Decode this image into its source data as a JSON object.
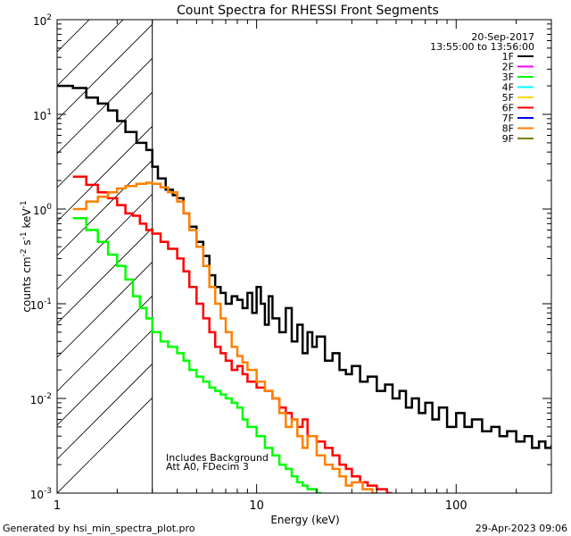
{
  "chart_data": {
    "type": "line",
    "title": "Count Spectra for RHESSI Front Segments",
    "xlabel": "Energy (keV)",
    "ylabel": "counts cm",
    "ylabel_parts": [
      "counts cm",
      "-2",
      " s",
      "-1",
      " keV",
      "-1"
    ],
    "x_scale": "log",
    "y_scale": "log",
    "xlim": [
      1,
      300
    ],
    "ylim": [
      0.001,
      100
    ],
    "x_ticks": [
      {
        "value": 1,
        "label": "1"
      },
      {
        "value": 10,
        "label": "10"
      },
      {
        "value": 100,
        "label": "100"
      }
    ],
    "y_ticks": [
      {
        "value": 0.001,
        "base": "10",
        "exp": "-3"
      },
      {
        "value": 0.01,
        "base": "10",
        "exp": "-2"
      },
      {
        "value": 0.1,
        "base": "10",
        "exp": "-1"
      },
      {
        "value": 1,
        "base": "10",
        "exp": "0"
      },
      {
        "value": 10,
        "base": "10",
        "exp": "1"
      },
      {
        "value": 100,
        "base": "10",
        "exp": "2"
      }
    ],
    "hatched_region": {
      "x_min": 1,
      "x_max": 3
    },
    "date": "20-Sep-2017",
    "time_range": "13:55:00 to 13:56:00",
    "annotations": [
      "Includes Background",
      "Att A0, FDecim 3"
    ],
    "footer_left": "Generated by hsi_min_spectra_plot.pro",
    "footer_right": "29-Apr-2023 09:06",
    "legend": [
      {
        "name": "1F",
        "color": "#000000"
      },
      {
        "name": "2F",
        "color": "#ff00ff"
      },
      {
        "name": "3F",
        "color": "#00ff00"
      },
      {
        "name": "4F",
        "color": "#00ffff"
      },
      {
        "name": "5F",
        "color": "#ffd700"
      },
      {
        "name": "6F",
        "color": "#ff0000"
      },
      {
        "name": "7F",
        "color": "#0000ff"
      },
      {
        "name": "8F",
        "color": "#ff8000"
      },
      {
        "name": "9F",
        "color": "#808000"
      }
    ],
    "series": [
      {
        "name": "1F",
        "color": "#000000",
        "points": [
          [
            1.0,
            20
          ],
          [
            1.2,
            19
          ],
          [
            1.4,
            15
          ],
          [
            1.6,
            13
          ],
          [
            1.8,
            11
          ],
          [
            2.0,
            8.5
          ],
          [
            2.2,
            6.5
          ],
          [
            2.5,
            5
          ],
          [
            2.8,
            4.2
          ],
          [
            3.0,
            2.8
          ],
          [
            3.2,
            2.1
          ],
          [
            3.5,
            1.6
          ],
          [
            3.8,
            1.4
          ],
          [
            4.0,
            1.3
          ],
          [
            4.3,
            0.9
          ],
          [
            4.6,
            0.65
          ],
          [
            5.0,
            0.45
          ],
          [
            5.4,
            0.32
          ],
          [
            5.8,
            0.2
          ],
          [
            6.2,
            0.15
          ],
          [
            6.6,
            0.13
          ],
          [
            7.0,
            0.1
          ],
          [
            7.5,
            0.12
          ],
          [
            8.0,
            0.11
          ],
          [
            8.5,
            0.09
          ],
          [
            9.0,
            0.13
          ],
          [
            9.5,
            0.08
          ],
          [
            10.0,
            0.15
          ],
          [
            10.5,
            0.1
          ],
          [
            11.0,
            0.06
          ],
          [
            11.5,
            0.12
          ],
          [
            12.0,
            0.07
          ],
          [
            13.0,
            0.05
          ],
          [
            14.0,
            0.09
          ],
          [
            15.0,
            0.04
          ],
          [
            16.0,
            0.06
          ],
          [
            17.0,
            0.03
          ],
          [
            18.0,
            0.05
          ],
          [
            19.0,
            0.035
          ],
          [
            20.0,
            0.045
          ],
          [
            22.0,
            0.025
          ],
          [
            24.0,
            0.03
          ],
          [
            26.0,
            0.02
          ],
          [
            28.0,
            0.018
          ],
          [
            30.0,
            0.022
          ],
          [
            33.0,
            0.015
          ],
          [
            36.0,
            0.017
          ],
          [
            40.0,
            0.012
          ],
          [
            44.0,
            0.014
          ],
          [
            48.0,
            0.01
          ],
          [
            52.0,
            0.012
          ],
          [
            56.0,
            0.008
          ],
          [
            60.0,
            0.01
          ],
          [
            65.0,
            0.007
          ],
          [
            70.0,
            0.009
          ],
          [
            76.0,
            0.006
          ],
          [
            82.0,
            0.008
          ],
          [
            90.0,
            0.005
          ],
          [
            100.0,
            0.007
          ],
          [
            110.0,
            0.005
          ],
          [
            120.0,
            0.006
          ],
          [
            135.0,
            0.0045
          ],
          [
            150.0,
            0.005
          ],
          [
            165.0,
            0.004
          ],
          [
            180.0,
            0.0045
          ],
          [
            200.0,
            0.0035
          ],
          [
            220.0,
            0.004
          ],
          [
            240.0,
            0.003
          ],
          [
            260.0,
            0.0035
          ],
          [
            280.0,
            0.003
          ],
          [
            300.0,
            0.0032
          ]
        ]
      },
      {
        "name": "6F",
        "color": "#ff0000",
        "points": [
          [
            1.2,
            2.2
          ],
          [
            1.4,
            1.8
          ],
          [
            1.6,
            1.5
          ],
          [
            1.8,
            1.3
          ],
          [
            2.0,
            1.1
          ],
          [
            2.2,
            0.9
          ],
          [
            2.4,
            0.85
          ],
          [
            2.6,
            0.7
          ],
          [
            2.8,
            0.6
          ],
          [
            3.0,
            0.55
          ],
          [
            3.3,
            0.45
          ],
          [
            3.6,
            0.38
          ],
          [
            4.0,
            0.3
          ],
          [
            4.3,
            0.22
          ],
          [
            4.6,
            0.15
          ],
          [
            5.0,
            0.1
          ],
          [
            5.4,
            0.07
          ],
          [
            5.8,
            0.05
          ],
          [
            6.2,
            0.035
          ],
          [
            6.6,
            0.03
          ],
          [
            7.0,
            0.025
          ],
          [
            7.5,
            0.02
          ],
          [
            8.0,
            0.022
          ],
          [
            8.5,
            0.018
          ],
          [
            9.0,
            0.015
          ],
          [
            10.0,
            0.013
          ],
          [
            11.0,
            0.012
          ],
          [
            12.0,
            0.01
          ],
          [
            13.0,
            0.008
          ],
          [
            14.0,
            0.007
          ],
          [
            15.0,
            0.006
          ],
          [
            16.0,
            0.005
          ],
          [
            17.0,
            0.006
          ],
          [
            18.0,
            0.004
          ],
          [
            20.0,
            0.0035
          ],
          [
            22.0,
            0.003
          ],
          [
            24.0,
            0.0025
          ],
          [
            26.0,
            0.002
          ],
          [
            28.0,
            0.0018
          ],
          [
            30.0,
            0.0015
          ],
          [
            33.0,
            0.0013
          ],
          [
            36.0,
            0.0012
          ],
          [
            40.0,
            0.0011
          ],
          [
            45.0,
            0.001
          ]
        ]
      },
      {
        "name": "8F",
        "color": "#ff8000",
        "points": [
          [
            1.2,
            1.0
          ],
          [
            1.4,
            1.2
          ],
          [
            1.6,
            1.35
          ],
          [
            1.8,
            1.5
          ],
          [
            2.0,
            1.65
          ],
          [
            2.2,
            1.75
          ],
          [
            2.5,
            1.85
          ],
          [
            2.8,
            1.9
          ],
          [
            3.0,
            1.85
          ],
          [
            3.3,
            1.7
          ],
          [
            3.6,
            1.5
          ],
          [
            4.0,
            1.2
          ],
          [
            4.3,
            0.9
          ],
          [
            4.6,
            0.6
          ],
          [
            5.0,
            0.4
          ],
          [
            5.4,
            0.25
          ],
          [
            5.8,
            0.15
          ],
          [
            6.2,
            0.1
          ],
          [
            6.6,
            0.07
          ],
          [
            7.0,
            0.05
          ],
          [
            7.5,
            0.035
          ],
          [
            8.0,
            0.028
          ],
          [
            8.5,
            0.024
          ],
          [
            9.0,
            0.02
          ],
          [
            10.0,
            0.015
          ],
          [
            11.0,
            0.012
          ],
          [
            12.0,
            0.01
          ],
          [
            13.0,
            0.007
          ],
          [
            14.0,
            0.005
          ],
          [
            15.0,
            0.006
          ],
          [
            16.0,
            0.004
          ],
          [
            17.0,
            0.003
          ],
          [
            18.0,
            0.004
          ],
          [
            20.0,
            0.0025
          ],
          [
            22.0,
            0.002
          ],
          [
            24.0,
            0.0018
          ],
          [
            26.0,
            0.0015
          ],
          [
            28.0,
            0.0012
          ],
          [
            30.0,
            0.0013
          ],
          [
            34.0,
            0.0011
          ],
          [
            38.0,
            0.001
          ]
        ]
      },
      {
        "name": "3F",
        "color": "#00ff00",
        "points": [
          [
            1.2,
            0.8
          ],
          [
            1.4,
            0.6
          ],
          [
            1.6,
            0.45
          ],
          [
            1.8,
            0.33
          ],
          [
            2.0,
            0.25
          ],
          [
            2.2,
            0.18
          ],
          [
            2.4,
            0.12
          ],
          [
            2.6,
            0.09
          ],
          [
            2.8,
            0.07
          ],
          [
            3.0,
            0.05
          ],
          [
            3.3,
            0.04
          ],
          [
            3.6,
            0.035
          ],
          [
            4.0,
            0.03
          ],
          [
            4.3,
            0.025
          ],
          [
            4.6,
            0.02
          ],
          [
            5.0,
            0.017
          ],
          [
            5.4,
            0.015
          ],
          [
            5.8,
            0.013
          ],
          [
            6.2,
            0.012
          ],
          [
            6.6,
            0.011
          ],
          [
            7.0,
            0.01
          ],
          [
            7.5,
            0.009
          ],
          [
            8.0,
            0.008
          ],
          [
            8.5,
            0.006
          ],
          [
            9.0,
            0.005
          ],
          [
            10.0,
            0.004
          ],
          [
            11.0,
            0.003
          ],
          [
            12.0,
            0.0025
          ],
          [
            13.0,
            0.002
          ],
          [
            14.0,
            0.0018
          ],
          [
            15.0,
            0.0015
          ],
          [
            16.0,
            0.0013
          ],
          [
            17.0,
            0.0012
          ],
          [
            18.0,
            0.0011
          ],
          [
            20.0,
            0.001
          ]
        ]
      }
    ]
  }
}
